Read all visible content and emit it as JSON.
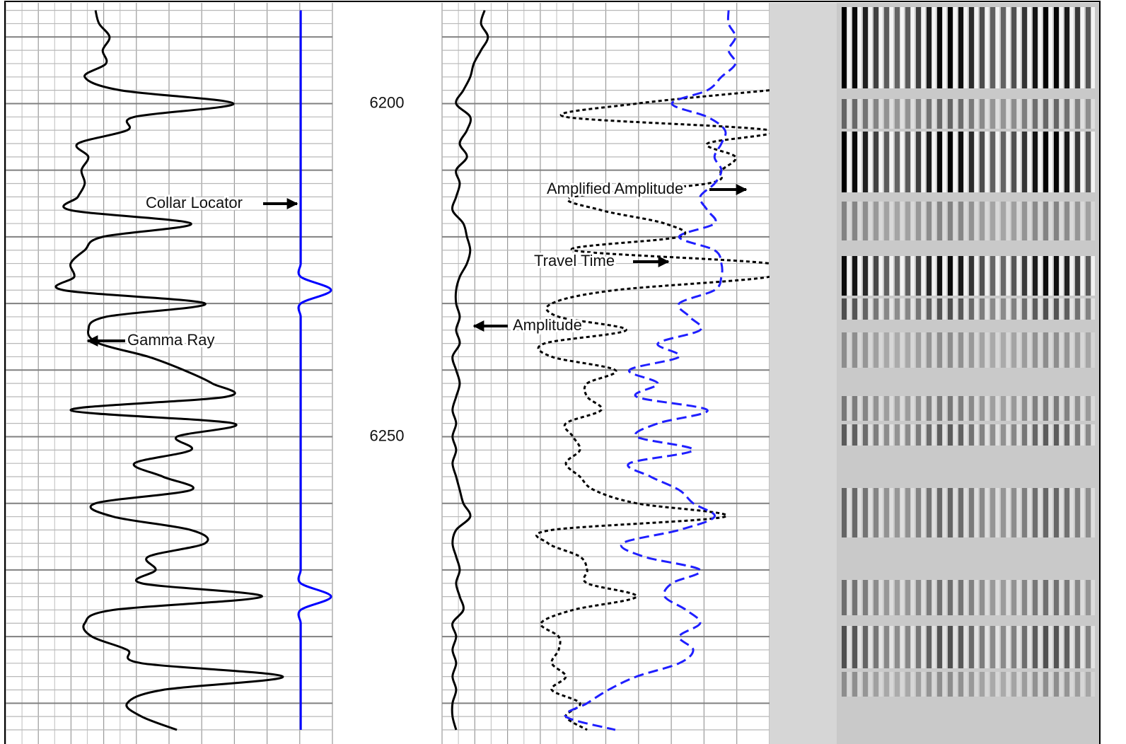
{
  "chart_data": {
    "type": "well-log",
    "ylim": [
      6185.3,
      6294
    ],
    "yticks": [
      6200,
      6250
    ],
    "grid": true,
    "depths": [
      6186,
      6188,
      6190,
      6192,
      6194,
      6196,
      6198,
      6200,
      6202,
      6204,
      6206,
      6208,
      6210,
      6212,
      6214,
      6216,
      6218,
      6220,
      6222,
      6224,
      6226,
      6228,
      6230,
      6232,
      6234,
      6236,
      6238,
      6240,
      6242,
      6244,
      6246,
      6248,
      6250,
      6252,
      6254,
      6256,
      6258,
      6260,
      6262,
      6264,
      6266,
      6268,
      6270,
      6272,
      6274,
      6276,
      6278,
      6280,
      6282,
      6284,
      6286,
      6288,
      6290,
      6292,
      6294
    ],
    "tracks": [
      {
        "xlim": [
          0,
          100
        ],
        "series": [
          {
            "name": "Gamma Ray",
            "color": "#000000",
            "style": "solid",
            "values": [
              27.5,
              28.6,
              31.8,
              29.7,
              30.7,
              24.2,
              35.1,
              69.7,
              39.4,
              37.2,
              22.1,
              25.3,
              23.2,
              24.2,
              22.1,
              19.9,
              56.7,
              29.7,
              24.2,
              19.9,
              21.0,
              17.7,
              61.0,
              30.7,
              25.3,
              28.6,
              43.7,
              54.5,
              63.2,
              67.5,
              19.9,
              69.7,
              52.4,
              56.7,
              39.4,
              48.1,
              56.7,
              27.5,
              32.9,
              56.7,
              61.0,
              43.7,
              45.9,
              41.6,
              78.4,
              32.9,
              24.2,
              26.4,
              37.2,
              41.6,
              84.8,
              48.1,
              37.2,
              41.6,
              52.4
            ]
          },
          {
            "name": "Collar Locator",
            "color": "#0000ff",
            "style": "solid",
            "values": [
              90.3,
              90.3,
              90.3,
              90.3,
              90.3,
              90.3,
              90.3,
              90.3,
              90.3,
              90.3,
              90.3,
              90.3,
              90.3,
              90.3,
              90.3,
              90.3,
              90.3,
              90.3,
              90.3,
              90.3,
              90.3,
              99.6,
              90.3,
              90.3,
              90.3,
              90.3,
              90.3,
              90.3,
              90.3,
              90.3,
              90.3,
              90.3,
              90.3,
              90.3,
              90.3,
              90.3,
              90.3,
              90.3,
              90.3,
              90.3,
              90.3,
              90.3,
              90.3,
              90.3,
              99.6,
              90.3,
              90.3,
              90.3,
              90.3,
              90.3,
              90.3,
              90.3,
              90.3,
              90.3,
              90.3
            ]
          }
        ]
      },
      {
        "xlim": [
          0,
          100
        ],
        "series": [
          {
            "name": "Amplitude",
            "color": "#000000",
            "style": "solid",
            "values": [
              13.0,
              11.9,
              14.0,
              11.9,
              9.7,
              8.6,
              6.5,
              4.3,
              8.6,
              7.6,
              5.4,
              7.6,
              4.3,
              5.4,
              4.3,
              3.2,
              6.5,
              7.6,
              8.6,
              7.6,
              5.4,
              4.3,
              4.3,
              5.4,
              4.3,
              5.4,
              3.2,
              4.3,
              5.4,
              4.3,
              3.2,
              4.3,
              3.2,
              4.3,
              3.2,
              4.3,
              5.4,
              6.5,
              8.6,
              4.3,
              3.2,
              4.3,
              5.4,
              4.3,
              5.4,
              6.5,
              3.2,
              4.3,
              3.2,
              4.3,
              3.2,
              4.3,
              3.2,
              3.2,
              4.3
            ]
          },
          {
            "name": "Amplified Amplitude",
            "color": "#000000",
            "style": "dotted",
            "values": [
              null,
              null,
              null,
              null,
              null,
              null,
              100,
              59.4,
              37.8,
              100,
              81.0,
              89.6,
              85.3,
              81.0,
              40.0,
              48.6,
              68.0,
              72.4,
              40.0,
              100,
              100,
              52.9,
              33.5,
              35.6,
              56.2,
              31.3,
              33.5,
              52.9,
              44.3,
              44.3,
              48.6,
              37.8,
              40.0,
              42.1,
              37.8,
              42.1,
              46.4,
              59.4,
              86.4,
              33.5,
              32.4,
              42.1,
              44.3,
              44.3,
              59.4,
              40.0,
              30.2,
              35.6,
              35.6,
              33.5,
              37.8,
              33.5,
              42.1,
              37.8,
              44.3
            ]
          },
          {
            "name": "Travel Time",
            "color": "#1f1fff",
            "style": "dashed",
            "values": [
              87.5,
              87.5,
              89.6,
              87.5,
              89.6,
              85.3,
              81.0,
              70.2,
              81.0,
              86.4,
              85.3,
              83.2,
              85.3,
              83.2,
              78.8,
              81.0,
              83.2,
              72.4,
              83.2,
              85.3,
              85.3,
              83.2,
              72.4,
              75.6,
              78.8,
              65.9,
              72.4,
              57.2,
              65.9,
              59.4,
              81.0,
              65.9,
              59.4,
              76.7,
              57.2,
              63.7,
              72.4,
              76.7,
              83.2,
              72.4,
              55.1,
              61.6,
              78.8,
              70.2,
              68.0,
              74.5,
              78.8,
              72.4,
              76.7,
              72.4,
              59.4,
              50.8,
              44.3,
              37.8,
              52.9
            ]
          }
        ]
      }
    ]
  }
}
